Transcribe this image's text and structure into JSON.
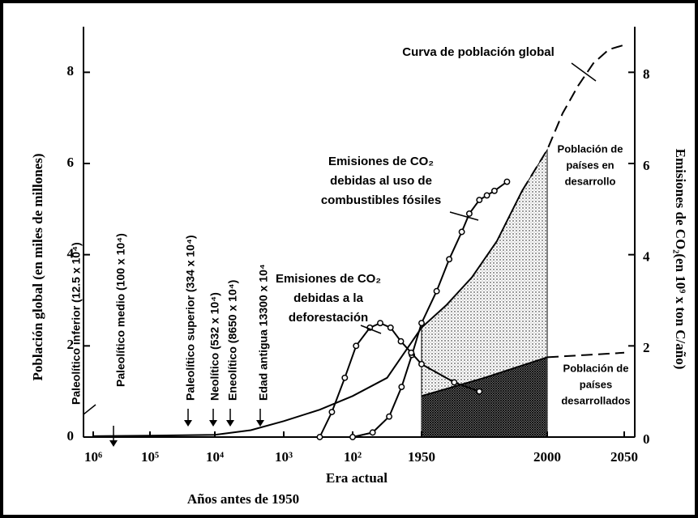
{
  "chart_data": {
    "type": "line",
    "xlabel": "Era actual",
    "xlabel2": "Años antes de 1950",
    "ylabel": "Población global (en miles de millones)",
    "y2label": "Emisiones de CO₂(en 10⁹ x ton C/año)",
    "xlim": [
      1500000,
      -107
    ],
    "xticks": [
      {
        "value": 1000000,
        "label": "10⁶"
      },
      {
        "value": 100000,
        "label": "10⁵"
      },
      {
        "value": 10000,
        "label": "10⁴"
      },
      {
        "value": 1000,
        "label": "10³"
      },
      {
        "value": 100,
        "label": "10²"
      },
      {
        "value": 0,
        "label": "1950"
      },
      {
        "value": -50,
        "label": "2000"
      },
      {
        "value": -100,
        "label": "2050"
      }
    ],
    "ylim": [
      0,
      9
    ],
    "yticks": [
      0,
      2,
      4,
      6,
      8
    ],
    "y2lim": [
      0,
      9
    ],
    "y2ticks": [
      0,
      2,
      4,
      6,
      8
    ],
    "series": [
      {
        "color": "#000",
        "style": "solid",
        "x": [
          1000000,
          100000,
          10000,
          3000,
          1000,
          300,
          100,
          50,
          0,
          -10,
          -20,
          -30,
          -40
        ],
        "values": [
          0.02,
          0.03,
          0.05,
          0.15,
          0.35,
          0.6,
          0.9,
          1.3,
          2.4,
          2.9,
          3.5,
          4.3,
          5.4
        ]
      },
      {
        "color": "#000",
        "style": "dashed",
        "x": [
          -40,
          -50,
          -60,
          -70,
          -80,
          -90,
          -100
        ],
        "values": [
          5.4,
          6.3,
          7.1,
          7.7,
          8.2,
          8.5,
          8.6
        ]
      },
      {
        "color": "#000",
        "style": "solid",
        "x": [
          0,
          -25,
          -50
        ],
        "values": [
          0.9,
          1.3,
          1.75
        ]
      },
      {
        "color": "#000",
        "style": "dashed",
        "x": [
          -50,
          -75,
          -100
        ],
        "values": [
          1.75,
          1.8,
          1.85
        ]
      },
      {
        "color": "#000",
        "style": "solid",
        "marker": "circle",
        "axis": "y2",
        "x": [
          100,
          71,
          47,
          29,
          14,
          0,
          -6,
          -11,
          -16,
          -19,
          -23,
          -26,
          -29,
          -34
        ],
        "values": [
          0,
          0.1,
          0.45,
          1.1,
          1.8,
          2.5,
          3.2,
          3.9,
          4.5,
          4.9,
          5.2,
          5.3,
          5.4,
          5.6
        ]
      },
      {
        "color": "#000",
        "style": "solid",
        "marker": "circle",
        "axis": "y2",
        "x": [
          300,
          200,
          130,
          95,
          75,
          60,
          45,
          30,
          15,
          0,
          -13,
          -23
        ],
        "values": [
          0,
          0.55,
          1.3,
          2.0,
          2.4,
          2.5,
          2.4,
          2.1,
          1.85,
          1.6,
          1.2,
          1.0
        ]
      }
    ],
    "annotations": [
      [
        "Curva de población global"
      ],
      [
        "Emisiones de CO₂",
        "debidas al uso de",
        "combustibles fósiles"
      ],
      [
        "Emisiones de CO₂",
        "debidas a la",
        "deforestación"
      ],
      [
        "Población de",
        "países en",
        "desarrollo"
      ],
      [
        "Población de",
        "países",
        "desarrollados"
      ]
    ],
    "eras": [
      "Paleolítico inferior (12.5 x 10⁴)",
      "Paleolítico medio (100 x 10⁴)",
      "Paleolítico superior (334 x 10⁴)",
      "Neolítico (532 x 10⁴)",
      "Eneolítico (8650 x 10⁴)",
      "Edad antigua 13300 x 10⁴"
    ]
  }
}
